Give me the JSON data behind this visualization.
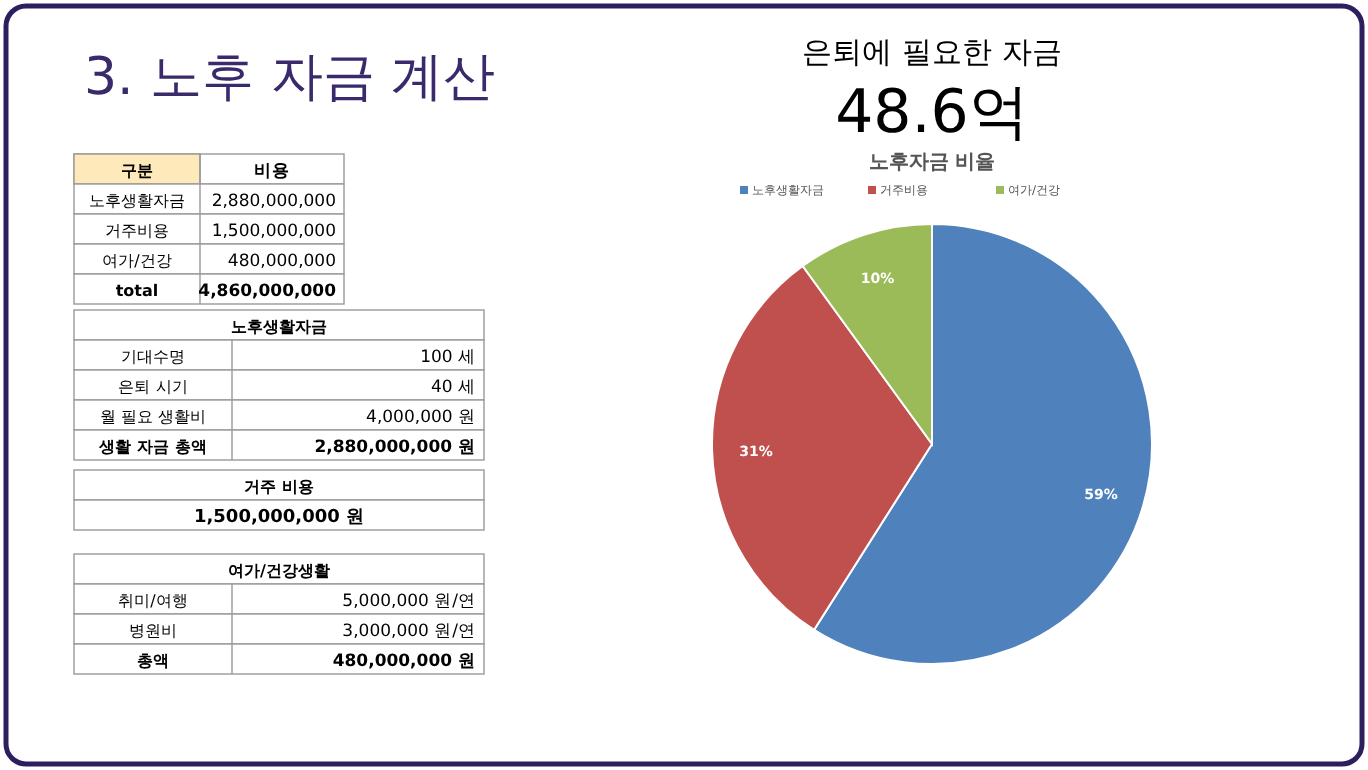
{
  "chart_data": [
    {
      "type": "other",
      "title": "3. 노후 자금 계산"
    },
    {
      "type": "other",
      "categories": [
        "구분",
        "노후생활자금",
        "거주비용",
        "여가/건강",
        "total"
      ],
      "value_labels": [
        "비용",
        "2,880,000,000",
        "1,500,000,000",
        "480,000,000",
        "4,860,000,000"
      ]
    },
    {
      "type": "other",
      "title": "노후생활자금",
      "categories": [
        "기대수명",
        "은퇴 시기",
        "월 필요 생활비",
        "생활 자금 총액"
      ],
      "value_labels": [
        "100 세",
        "40 세",
        "4,000,000 원",
        "2,880,000,000 원"
      ]
    },
    {
      "type": "other",
      "title": "거주 비용",
      "categories": [
        null
      ],
      "value_labels": [
        "1,500,000,000 원"
      ]
    },
    {
      "type": "other",
      "title": "여가/건강생활",
      "categories": [
        "취미/여행",
        "병원비",
        "총액"
      ],
      "value_labels": [
        "5,000,000 원/연",
        "3,000,000 원/연",
        "480,000,000 원"
      ]
    },
    {
      "type": "other",
      "title": "은퇴에 필요한 자금",
      "subtitle": "48.6억"
    },
    {
      "type": "pie",
      "title": "노후자금 비율",
      "categories": [
        "노후생활자금",
        "거주비용",
        "여가/건강"
      ],
      "values": [
        59,
        31,
        10
      ],
      "colors": [
        "#4f81bd",
        "#c0504d",
        "#9bbb59"
      ],
      "value_labels": [
        "59%",
        "31%",
        "10%"
      ],
      "legend": "top"
    }
  ]
}
